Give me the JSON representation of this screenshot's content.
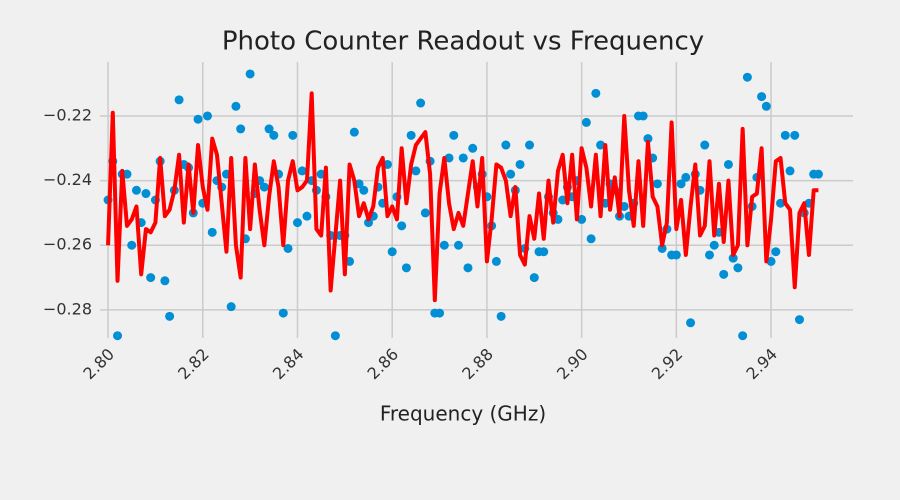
{
  "chart_data": {
    "type": "scatter",
    "title": "Photo Counter Readout vs Frequency",
    "x_label": "Frequency (GHz)",
    "x": [
      2.8,
      2.801,
      2.802,
      2.803,
      2.804,
      2.805,
      2.806,
      2.807,
      2.808,
      2.809,
      2.81,
      2.811,
      2.812,
      2.813,
      2.814,
      2.815,
      2.816,
      2.817,
      2.818,
      2.819,
      2.82,
      2.821,
      2.822,
      2.823,
      2.824,
      2.825,
      2.826,
      2.827,
      2.828,
      2.829,
      2.83,
      2.831,
      2.832,
      2.833,
      2.834,
      2.835,
      2.836,
      2.837,
      2.838,
      2.839,
      2.84,
      2.841,
      2.842,
      2.843,
      2.844,
      2.845,
      2.846,
      2.847,
      2.848,
      2.849,
      2.85,
      2.851,
      2.852,
      2.853,
      2.854,
      2.855,
      2.856,
      2.857,
      2.858,
      2.859,
      2.86,
      2.861,
      2.862,
      2.863,
      2.864,
      2.865,
      2.866,
      2.867,
      2.868,
      2.869,
      2.87,
      2.871,
      2.872,
      2.873,
      2.874,
      2.875,
      2.876,
      2.877,
      2.878,
      2.879,
      2.88,
      2.881,
      2.882,
      2.883,
      2.884,
      2.885,
      2.886,
      2.887,
      2.888,
      2.889,
      2.89,
      2.891,
      2.892,
      2.893,
      2.894,
      2.895,
      2.896,
      2.897,
      2.898,
      2.899,
      2.9,
      2.901,
      2.902,
      2.903,
      2.904,
      2.905,
      2.906,
      2.907,
      2.908,
      2.909,
      2.91,
      2.911,
      2.912,
      2.913,
      2.914,
      2.915,
      2.916,
      2.917,
      2.918,
      2.919,
      2.92,
      2.921,
      2.922,
      2.923,
      2.924,
      2.925,
      2.926,
      2.927,
      2.928,
      2.929,
      2.93,
      2.931,
      2.932,
      2.933,
      2.934,
      2.935,
      2.936,
      2.937,
      2.938,
      2.939,
      2.94,
      2.941,
      2.942,
      2.943,
      2.944,
      2.945,
      2.946,
      2.947,
      2.948,
      2.949,
      2.95
    ],
    "series": [
      {
        "type": "scatter",
        "color": "#008fd5",
        "values": [
          -0.246,
          -0.234,
          -0.288,
          -0.238,
          -0.238,
          -0.26,
          -0.243,
          -0.253,
          -0.244,
          -0.27,
          -0.246,
          -0.234,
          -0.271,
          -0.282,
          -0.243,
          -0.215,
          -0.235,
          -0.236,
          -0.25,
          -0.221,
          -0.247,
          -0.22,
          -0.256,
          -0.24,
          -0.242,
          -0.238,
          -0.279,
          -0.217,
          -0.224,
          -0.258,
          -0.207,
          -0.244,
          -0.24,
          -0.242,
          -0.224,
          -0.226,
          -0.238,
          -0.281,
          -0.261,
          -0.226,
          -0.253,
          -0.237,
          -0.251,
          -0.24,
          -0.243,
          -0.238,
          -0.245,
          -0.257,
          -0.288,
          -0.257,
          -0.257,
          -0.265,
          -0.225,
          -0.241,
          -0.243,
          -0.253,
          -0.251,
          -0.242,
          -0.247,
          -0.235,
          -0.262,
          -0.245,
          -0.254,
          -0.267,
          -0.226,
          -0.237,
          -0.216,
          -0.25,
          -0.234,
          -0.281,
          -0.281,
          -0.26,
          -0.233,
          -0.226,
          -0.26,
          -0.233,
          -0.267,
          -0.23,
          -0.242,
          -0.238,
          -0.245,
          -0.254,
          -0.265,
          -0.282,
          -0.229,
          -0.238,
          -0.243,
          -0.235,
          -0.261,
          -0.229,
          -0.27,
          -0.262,
          -0.262,
          -0.245,
          -0.25,
          -0.252,
          -0.246,
          -0.242,
          -0.245,
          -0.24,
          -0.252,
          -0.222,
          -0.258,
          -0.213,
          -0.229,
          -0.247,
          -0.241,
          -0.243,
          -0.251,
          -0.248,
          -0.251,
          -0.247,
          -0.22,
          -0.22,
          -0.227,
          -0.233,
          -0.241,
          -0.261,
          -0.255,
          -0.263,
          -0.263,
          -0.241,
          -0.239,
          -0.284,
          -0.238,
          -0.243,
          -0.229,
          -0.263,
          -0.26,
          -0.256,
          -0.269,
          -0.235,
          -0.264,
          -0.267,
          -0.288,
          -0.208,
          -0.248,
          -0.239,
          -0.214,
          -0.217,
          -0.265,
          -0.262,
          -0.247,
          -0.226,
          -0.237,
          -0.226,
          -0.283,
          -0.25,
          -0.247,
          -0.238,
          -0.238
        ]
      },
      {
        "type": "line",
        "color": "#ff0000",
        "values": [
          -0.26,
          -0.219,
          -0.271,
          -0.237,
          -0.254,
          -0.252,
          -0.248,
          -0.269,
          -0.255,
          -0.256,
          -0.253,
          -0.233,
          -0.251,
          -0.249,
          -0.243,
          -0.232,
          -0.253,
          -0.235,
          -0.25,
          -0.229,
          -0.242,
          -0.249,
          -0.227,
          -0.232,
          -0.247,
          -0.262,
          -0.233,
          -0.26,
          -0.27,
          -0.233,
          -0.255,
          -0.235,
          -0.249,
          -0.26,
          -0.245,
          -0.234,
          -0.242,
          -0.26,
          -0.24,
          -0.234,
          -0.243,
          -0.242,
          -0.24,
          -0.213,
          -0.255,
          -0.257,
          -0.236,
          -0.274,
          -0.257,
          -0.24,
          -0.269,
          -0.235,
          -0.24,
          -0.251,
          -0.247,
          -0.252,
          -0.248,
          -0.236,
          -0.233,
          -0.251,
          -0.248,
          -0.252,
          -0.23,
          -0.247,
          -0.235,
          -0.229,
          -0.227,
          -0.225,
          -0.238,
          -0.277,
          -0.244,
          -0.233,
          -0.247,
          -0.255,
          -0.25,
          -0.254,
          -0.244,
          -0.234,
          -0.248,
          -0.233,
          -0.265,
          -0.252,
          -0.235,
          -0.236,
          -0.24,
          -0.251,
          -0.242,
          -0.263,
          -0.266,
          -0.251,
          -0.258,
          -0.244,
          -0.258,
          -0.24,
          -0.253,
          -0.237,
          -0.232,
          -0.247,
          -0.232,
          -0.252,
          -0.23,
          -0.236,
          -0.248,
          -0.232,
          -0.251,
          -0.229,
          -0.249,
          -0.239,
          -0.251,
          -0.22,
          -0.243,
          -0.254,
          -0.234,
          -0.254,
          -0.228,
          -0.245,
          -0.248,
          -0.26,
          -0.253,
          -0.222,
          -0.255,
          -0.246,
          -0.263,
          -0.248,
          -0.235,
          -0.257,
          -0.254,
          -0.234,
          -0.257,
          -0.241,
          -0.259,
          -0.24,
          -0.263,
          -0.26,
          -0.224,
          -0.26,
          -0.245,
          -0.244,
          -0.23,
          -0.265,
          -0.252,
          -0.234,
          -0.233,
          -0.247,
          -0.249,
          -0.273,
          -0.25,
          -0.247,
          -0.263,
          -0.243,
          -0.243
        ]
      }
    ],
    "xlim": [
      2.7983,
      2.9573
    ],
    "ylim": [
      -0.2887,
      -0.2033
    ],
    "xticks": [
      {
        "value": 2.8,
        "label": "2.80"
      },
      {
        "value": 2.82,
        "label": "2.82"
      },
      {
        "value": 2.84,
        "label": "2.84"
      },
      {
        "value": 2.86,
        "label": "2.86"
      },
      {
        "value": 2.88,
        "label": "2.88"
      },
      {
        "value": 2.9,
        "label": "2.90"
      },
      {
        "value": 2.92,
        "label": "2.92"
      },
      {
        "value": 2.94,
        "label": "2.94"
      }
    ],
    "yticks": [
      {
        "value": -0.28,
        "label": "−0.28"
      },
      {
        "value": -0.26,
        "label": "−0.26"
      },
      {
        "value": -0.24,
        "label": "−0.24"
      },
      {
        "value": -0.22,
        "label": "−0.22"
      }
    ],
    "grid": true
  }
}
